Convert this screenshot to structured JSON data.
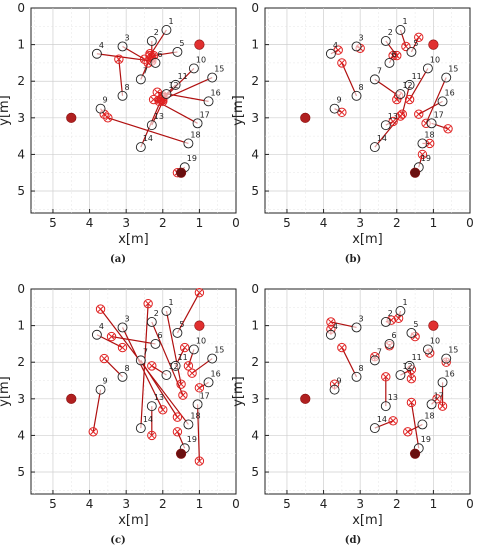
{
  "figure": {
    "xlabel": "x[m]",
    "ylabel": "y[m]",
    "x_ticks": [
      "5",
      "4",
      "3",
      "2",
      "1",
      "0"
    ],
    "y_ticks": [
      "0",
      "1",
      "2",
      "3",
      "4",
      "5"
    ]
  },
  "chart_data": [
    {
      "type": "scatter",
      "caption": "(a)",
      "xlabel": "x[m]",
      "ylabel": "y[m]",
      "xlim": [
        5.6,
        0
      ],
      "ylim": [
        0,
        5.6
      ],
      "grid": true,
      "anchors": [
        {
          "x": 1.0,
          "y": 1.0
        },
        {
          "x": 4.5,
          "y": 3.0
        },
        {
          "x": 1.5,
          "y": 4.5
        }
      ],
      "nodes": [
        {
          "label": "1",
          "x": 1.9,
          "y": 0.6
        },
        {
          "label": "2",
          "x": 2.3,
          "y": 0.9
        },
        {
          "label": "3",
          "x": 3.1,
          "y": 1.05
        },
        {
          "label": "4",
          "x": 3.8,
          "y": 1.25
        },
        {
          "label": "5",
          "x": 1.6,
          "y": 1.2
        },
        {
          "label": "6",
          "x": 2.2,
          "y": 1.5
        },
        {
          "label": "7",
          "x": 2.6,
          "y": 1.95
        },
        {
          "label": "8",
          "x": 3.1,
          "y": 2.4
        },
        {
          "label": "9",
          "x": 3.7,
          "y": 2.75
        },
        {
          "label": "10",
          "x": 1.15,
          "y": 1.65
        },
        {
          "label": "11",
          "x": 1.65,
          "y": 2.1
        },
        {
          "label": "12",
          "x": 1.9,
          "y": 2.35
        },
        {
          "label": "13",
          "x": 2.3,
          "y": 3.2
        },
        {
          "label": "14",
          "x": 2.6,
          "y": 3.8
        },
        {
          "label": "15",
          "x": 0.65,
          "y": 1.9
        },
        {
          "label": "16",
          "x": 0.75,
          "y": 2.55
        },
        {
          "label": "17",
          "x": 1.05,
          "y": 3.15
        },
        {
          "label": "18",
          "x": 1.3,
          "y": 3.7
        },
        {
          "label": "19",
          "x": 1.4,
          "y": 4.35
        }
      ],
      "estimates": [
        {
          "x": 2.35,
          "y": 1.3
        },
        {
          "x": 2.3,
          "y": 1.35
        },
        {
          "x": 2.5,
          "y": 1.4
        },
        {
          "x": 2.3,
          "y": 1.45
        },
        {
          "x": 2.25,
          "y": 1.3
        },
        {
          "x": 2.35,
          "y": 1.25
        },
        {
          "x": 2.4,
          "y": 1.5
        },
        {
          "x": 3.2,
          "y": 1.4
        },
        {
          "x": 3.6,
          "y": 2.9
        },
        {
          "x": 2.0,
          "y": 2.5
        },
        {
          "x": 2.0,
          "y": 2.45
        },
        {
          "x": 2.05,
          "y": 2.5
        },
        {
          "x": 2.0,
          "y": 2.55
        },
        {
          "x": 2.0,
          "y": 2.4
        },
        {
          "x": 2.1,
          "y": 2.55
        },
        {
          "x": 2.15,
          "y": 2.3
        },
        {
          "x": 2.25,
          "y": 2.5
        },
        {
          "x": 3.5,
          "y": 3.0
        },
        {
          "x": 1.6,
          "y": 4.5
        }
      ]
    },
    {
      "type": "scatter",
      "caption": "(b)",
      "xlabel": "x[m]",
      "ylabel": "y[m]",
      "xlim": [
        5.6,
        0
      ],
      "ylim": [
        0,
        5.6
      ],
      "grid": true,
      "anchors": [
        {
          "x": 1.0,
          "y": 1.0
        },
        {
          "x": 4.5,
          "y": 3.0
        },
        {
          "x": 1.5,
          "y": 4.5
        }
      ],
      "nodes": [
        {
          "label": "1",
          "x": 1.9,
          "y": 0.6
        },
        {
          "label": "2",
          "x": 2.3,
          "y": 0.9
        },
        {
          "label": "3",
          "x": 3.1,
          "y": 1.05
        },
        {
          "label": "4",
          "x": 3.8,
          "y": 1.25
        },
        {
          "label": "5",
          "x": 1.6,
          "y": 1.2
        },
        {
          "label": "6",
          "x": 2.2,
          "y": 1.5
        },
        {
          "label": "7",
          "x": 2.6,
          "y": 1.95
        },
        {
          "label": "8",
          "x": 3.1,
          "y": 2.4
        },
        {
          "label": "9",
          "x": 3.7,
          "y": 2.75
        },
        {
          "label": "10",
          "x": 1.15,
          "y": 1.65
        },
        {
          "label": "11",
          "x": 1.65,
          "y": 2.1
        },
        {
          "label": "12",
          "x": 1.9,
          "y": 2.35
        },
        {
          "label": "13",
          "x": 2.3,
          "y": 3.2
        },
        {
          "label": "14",
          "x": 2.6,
          "y": 3.8
        },
        {
          "label": "15",
          "x": 0.65,
          "y": 1.9
        },
        {
          "label": "16",
          "x": 0.75,
          "y": 2.55
        },
        {
          "label": "17",
          "x": 1.05,
          "y": 3.15
        },
        {
          "label": "18",
          "x": 1.3,
          "y": 3.7
        },
        {
          "label": "19",
          "x": 1.4,
          "y": 4.35
        }
      ],
      "estimates": [
        {
          "x": 1.75,
          "y": 1.05
        },
        {
          "x": 2.0,
          "y": 1.3
        },
        {
          "x": 3.0,
          "y": 1.1
        },
        {
          "x": 3.6,
          "y": 1.15
        },
        {
          "x": 1.4,
          "y": 0.8
        },
        {
          "x": 2.1,
          "y": 1.3
        },
        {
          "x": 1.95,
          "y": 2.4
        },
        {
          "x": 3.5,
          "y": 1.5
        },
        {
          "x": 3.5,
          "y": 2.85
        },
        {
          "x": 1.65,
          "y": 2.5
        },
        {
          "x": 1.85,
          "y": 2.9
        },
        {
          "x": 2.0,
          "y": 2.5
        },
        {
          "x": 2.1,
          "y": 3.1
        },
        {
          "x": 1.9,
          "y": 2.95
        },
        {
          "x": 1.2,
          "y": 3.15
        },
        {
          "x": 1.4,
          "y": 2.9
        },
        {
          "x": 0.6,
          "y": 3.3
        },
        {
          "x": 1.1,
          "y": 3.7
        },
        {
          "x": 1.3,
          "y": 4.0
        }
      ]
    },
    {
      "type": "scatter",
      "caption": "(c)",
      "xlabel": "x[m]",
      "ylabel": "y[m]",
      "xlim": [
        5.6,
        0
      ],
      "ylim": [
        0,
        5.6
      ],
      "grid": true,
      "anchors": [
        {
          "x": 1.0,
          "y": 1.0
        },
        {
          "x": 4.5,
          "y": 3.0
        },
        {
          "x": 1.5,
          "y": 4.5
        }
      ],
      "nodes": [
        {
          "label": "1",
          "x": 1.9,
          "y": 0.6
        },
        {
          "label": "2",
          "x": 2.3,
          "y": 0.9
        },
        {
          "label": "3",
          "x": 3.1,
          "y": 1.05
        },
        {
          "label": "4",
          "x": 3.8,
          "y": 1.25
        },
        {
          "label": "5",
          "x": 1.6,
          "y": 1.2
        },
        {
          "label": "6",
          "x": 2.2,
          "y": 1.5
        },
        {
          "label": "7",
          "x": 2.6,
          "y": 1.95
        },
        {
          "label": "8",
          "x": 3.1,
          "y": 2.4
        },
        {
          "label": "9",
          "x": 3.7,
          "y": 2.75
        },
        {
          "label": "10",
          "x": 1.15,
          "y": 1.65
        },
        {
          "label": "11",
          "x": 1.65,
          "y": 2.1
        },
        {
          "label": "12",
          "x": 1.9,
          "y": 2.35
        },
        {
          "label": "13",
          "x": 2.3,
          "y": 3.2
        },
        {
          "label": "14",
          "x": 2.6,
          "y": 3.8
        },
        {
          "label": "15",
          "x": 0.65,
          "y": 1.9
        },
        {
          "label": "16",
          "x": 0.75,
          "y": 2.55
        },
        {
          "label": "17",
          "x": 1.05,
          "y": 3.15
        },
        {
          "label": "18",
          "x": 1.3,
          "y": 3.7
        },
        {
          "label": "19",
          "x": 1.4,
          "y": 4.35
        }
      ],
      "estimates": [
        {
          "x": 1.5,
          "y": 2.6
        },
        {
          "x": 1.45,
          "y": 2.9
        },
        {
          "x": 2.0,
          "y": 3.3
        },
        {
          "x": 3.1,
          "y": 1.6
        },
        {
          "x": 1.0,
          "y": 0.1
        },
        {
          "x": 3.4,
          "y": 1.3
        },
        {
          "x": 1.6,
          "y": 3.5
        },
        {
          "x": 3.6,
          "y": 1.9
        },
        {
          "x": 3.9,
          "y": 3.9
        },
        {
          "x": 1.3,
          "y": 2.1
        },
        {
          "x": 1.4,
          "y": 1.6
        },
        {
          "x": 2.3,
          "y": 2.1
        },
        {
          "x": 2.3,
          "y": 4.0
        },
        {
          "x": 2.4,
          "y": 0.4
        },
        {
          "x": 1.2,
          "y": 2.3
        },
        {
          "x": 1.0,
          "y": 2.7
        },
        {
          "x": 1.0,
          "y": 4.7
        },
        {
          "x": 3.7,
          "y": 0.55
        },
        {
          "x": 1.6,
          "y": 3.9
        }
      ]
    },
    {
      "type": "scatter",
      "caption": "(d)",
      "xlabel": "x[m]",
      "ylabel": "y[m]",
      "xlim": [
        5.6,
        0
      ],
      "ylim": [
        0,
        5.6
      ],
      "grid": true,
      "anchors": [
        {
          "x": 1.0,
          "y": 1.0
        },
        {
          "x": 4.5,
          "y": 3.0
        },
        {
          "x": 1.5,
          "y": 4.5
        }
      ],
      "nodes": [
        {
          "label": "1",
          "x": 1.9,
          "y": 0.6
        },
        {
          "label": "2",
          "x": 2.3,
          "y": 0.9
        },
        {
          "label": "3",
          "x": 3.1,
          "y": 1.05
        },
        {
          "label": "4",
          "x": 3.8,
          "y": 1.25
        },
        {
          "label": "5",
          "x": 1.6,
          "y": 1.2
        },
        {
          "label": "6",
          "x": 2.2,
          "y": 1.5
        },
        {
          "label": "7",
          "x": 2.6,
          "y": 1.95
        },
        {
          "label": "8",
          "x": 3.1,
          "y": 2.4
        },
        {
          "label": "9",
          "x": 3.7,
          "y": 2.75
        },
        {
          "label": "10",
          "x": 1.15,
          "y": 1.65
        },
        {
          "label": "11",
          "x": 1.65,
          "y": 2.1
        },
        {
          "label": "12",
          "x": 1.9,
          "y": 2.35
        },
        {
          "label": "13",
          "x": 2.3,
          "y": 3.2
        },
        {
          "label": "14",
          "x": 2.6,
          "y": 3.8
        },
        {
          "label": "15",
          "x": 0.65,
          "y": 1.9
        },
        {
          "label": "16",
          "x": 0.75,
          "y": 2.55
        },
        {
          "label": "17",
          "x": 1.05,
          "y": 3.15
        },
        {
          "label": "18",
          "x": 1.3,
          "y": 3.7
        },
        {
          "label": "19",
          "x": 1.4,
          "y": 4.35
        }
      ],
      "estimates": [
        {
          "x": 1.95,
          "y": 0.8
        },
        {
          "x": 2.15,
          "y": 0.85
        },
        {
          "x": 3.8,
          "y": 0.9
        },
        {
          "x": 3.8,
          "y": 1.1
        },
        {
          "x": 1.5,
          "y": 1.3
        },
        {
          "x": 2.2,
          "y": 1.55
        },
        {
          "x": 2.6,
          "y": 1.85
        },
        {
          "x": 3.5,
          "y": 1.6
        },
        {
          "x": 3.7,
          "y": 2.6
        },
        {
          "x": 1.1,
          "y": 1.75
        },
        {
          "x": 1.6,
          "y": 2.45
        },
        {
          "x": 1.6,
          "y": 2.2
        },
        {
          "x": 2.3,
          "y": 2.4
        },
        {
          "x": 2.1,
          "y": 3.6
        },
        {
          "x": 0.65,
          "y": 2.0
        },
        {
          "x": 0.75,
          "y": 3.2
        },
        {
          "x": 0.9,
          "y": 3.0
        },
        {
          "x": 1.7,
          "y": 3.9
        },
        {
          "x": 1.6,
          "y": 3.1
        }
      ]
    }
  ]
}
